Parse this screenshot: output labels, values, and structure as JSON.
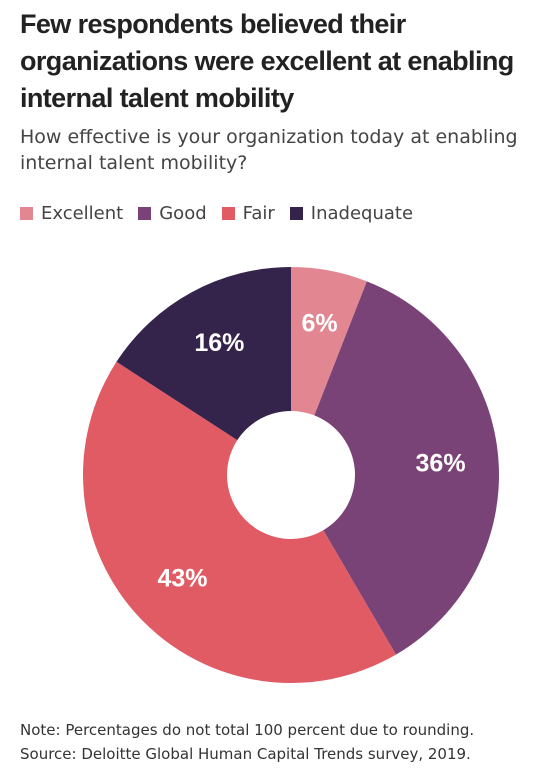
{
  "chart_data": {
    "type": "pie",
    "donut": true,
    "title": "Few respondents believed their organizations were excellent at enabling internal talent mobility",
    "subtitle": "How effective is your organization today at enabling internal talent mobility?",
    "legend_position": "top-left",
    "categories": [
      "Excellent",
      "Good",
      "Fair",
      "Inadequate"
    ],
    "values": [
      6,
      36,
      43,
      16
    ],
    "labels": [
      "6%",
      "36%",
      "43%",
      "16%"
    ],
    "unit": "%",
    "colors": [
      "#E28791",
      "#7A4378",
      "#E05B64",
      "#34234A"
    ]
  },
  "footnotes": {
    "note": "Note: Percentages do not total 100 percent due to rounding.",
    "source": "Source: Deloitte Global Human Capital Trends survey, 2019."
  }
}
